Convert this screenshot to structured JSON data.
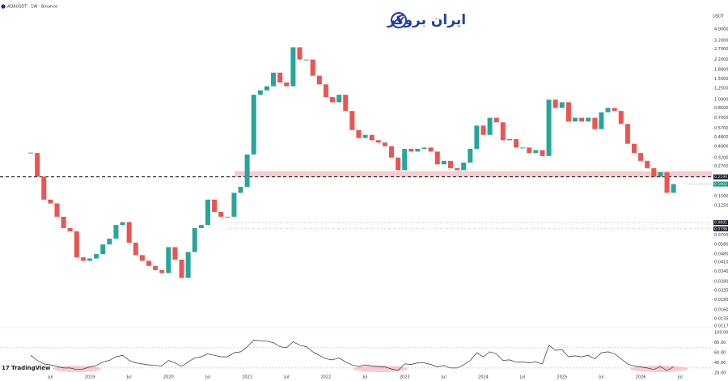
{
  "chart_data": [
    {
      "type": "candlestick",
      "title": "ADAUSDT · 1W · Binance",
      "brand": "ایران بروکر",
      "watermark": "TradingView",
      "currency": "USDT",
      "log_scale": true,
      "x": [
        "2018-04",
        "2018-05",
        "2018-06",
        "2018-07",
        "2018-08",
        "2018-09",
        "2018-10",
        "2018-11",
        "2018-12",
        "2019-01",
        "2019-02",
        "2019-03",
        "2019-04",
        "2019-05",
        "2019-06",
        "2019-07",
        "2019-08",
        "2019-09",
        "2019-10",
        "2019-11",
        "2019-12",
        "2020-01",
        "2020-02",
        "2020-03",
        "2020-04",
        "2020-05",
        "2020-06",
        "2020-07",
        "2020-08",
        "2020-09",
        "2020-10",
        "2020-11",
        "2020-12",
        "2021-01",
        "2021-02",
        "2021-03",
        "2021-04",
        "2021-05",
        "2021-06",
        "2021-07",
        "2021-08",
        "2021-09",
        "2021-10",
        "2021-11",
        "2021-12",
        "2022-01",
        "2022-02",
        "2022-03",
        "2022-04",
        "2022-05",
        "2022-06",
        "2022-07",
        "2022-08",
        "2022-09",
        "2022-10",
        "2022-11",
        "2022-12",
        "2023-01",
        "2023-02",
        "2023-03",
        "2023-04",
        "2023-05",
        "2023-06",
        "2023-07",
        "2023-08",
        "2023-09",
        "2023-10",
        "2023-11",
        "2023-12",
        "2024-01",
        "2024-02",
        "2024-03",
        "2024-04",
        "2024-05",
        "2024-06",
        "2024-07",
        "2024-08",
        "2024-09",
        "2024-10",
        "2024-11",
        "2024-12",
        "2025-01",
        "2025-02",
        "2025-03",
        "2025-04",
        "2025-05",
        "2025-06",
        "2025-07",
        "2025-08",
        "2025-09",
        "2025-10",
        "2025-11",
        "2025-12",
        "2026-01",
        "2026-02",
        "2026-03",
        "2026-04",
        "2026-05",
        "2026-06"
      ],
      "series": [
        {
          "name": "ADAUSDT",
          "up_color": "#26a69a",
          "down_color": "#ef5350",
          "values": [
            0.35,
            0.22,
            0.14,
            0.13,
            0.1,
            0.08,
            0.075,
            0.045,
            0.042,
            0.044,
            0.048,
            0.058,
            0.065,
            0.085,
            0.09,
            0.06,
            0.047,
            0.042,
            0.038,
            0.035,
            0.033,
            0.055,
            0.043,
            0.03,
            0.05,
            0.08,
            0.085,
            0.14,
            0.11,
            0.1,
            0.1,
            0.16,
            0.18,
            0.34,
            1.1,
            1.2,
            1.3,
            1.7,
            1.4,
            1.3,
            2.8,
            2.2,
            2.2,
            1.6,
            1.35,
            1.05,
            0.95,
            1.1,
            0.8,
            0.55,
            0.47,
            0.5,
            0.45,
            0.43,
            0.4,
            0.32,
            0.25,
            0.38,
            0.36,
            0.38,
            0.39,
            0.36,
            0.28,
            0.3,
            0.26,
            0.25,
            0.29,
            0.38,
            0.6,
            0.5,
            0.7,
            0.64,
            0.45,
            0.46,
            0.39,
            0.39,
            0.35,
            0.37,
            0.33,
            1.0,
            0.85,
            0.95,
            0.65,
            0.7,
            0.65,
            0.7,
            0.56,
            0.78,
            0.85,
            0.8,
            0.62,
            0.42,
            0.35,
            0.3,
            0.26,
            0.22,
            0.24,
            0.16,
            0.19
          ]
        }
      ],
      "ylim": [
        0.0113,
        5.16
      ],
      "yticks": [
        {
          "value": 4,
          "label": "4.0000"
        },
        {
          "value": 3.2,
          "label": "3.2000"
        },
        {
          "value": 2.7,
          "label": "2.7000"
        },
        {
          "value": 2.2,
          "label": "2.2000"
        },
        {
          "value": 1.8,
          "label": "1.8000"
        },
        {
          "value": 1.5,
          "label": "1.5000"
        },
        {
          "value": 1.25,
          "label": "1.2500"
        },
        {
          "value": 1,
          "label": "1.0000"
        },
        {
          "value": 0.85,
          "label": "0.8500"
        },
        {
          "value": 0.7,
          "label": "0.7000"
        },
        {
          "value": 0.57,
          "label": "0.5700"
        },
        {
          "value": 0.48,
          "label": "0.4800"
        },
        {
          "value": 0.4,
          "label": "0.4000"
        },
        {
          "value": 0.32,
          "label": "0.3200"
        },
        {
          "value": 0.27,
          "label": "0.2700"
        },
        {
          "value": 0.15,
          "label": "0.1500"
        },
        {
          "value": 0.125,
          "label": "0.1250"
        },
        {
          "value": 0.07,
          "label": "0.0700"
        },
        {
          "value": 0.058,
          "label": "0.0580"
        },
        {
          "value": 0.048,
          "label": "0.0480"
        },
        {
          "value": 0.041,
          "label": "0.0410"
        },
        {
          "value": 0.034,
          "label": "0.0340"
        },
        {
          "value": 0.028,
          "label": "0.0280"
        },
        {
          "value": 0.0235,
          "label": "0.0235"
        },
        {
          "value": 0.0195,
          "label": "0.0195"
        },
        {
          "value": 0.016,
          "label": "0.0160"
        },
        {
          "value": 0.0135,
          "label": "0.0135"
        },
        {
          "value": 0.0117,
          "label": "0.0117"
        }
      ],
      "xticks": [
        {
          "value": "2018-07",
          "label": "Jul"
        },
        {
          "value": "2019-01",
          "label": "2019"
        },
        {
          "value": "2019-07",
          "label": "Jul"
        },
        {
          "value": "2020-01",
          "label": "2020"
        },
        {
          "value": "2020-07",
          "label": "Jul"
        },
        {
          "value": "2021-01",
          "label": "2021"
        },
        {
          "value": "2021-07",
          "label": "Jul"
        },
        {
          "value": "2022-01",
          "label": "2022"
        },
        {
          "value": "2022-07",
          "label": "Jul"
        },
        {
          "value": "2023-01",
          "label": "2023"
        },
        {
          "value": "2023-07",
          "label": "Jul"
        },
        {
          "value": "2024-01",
          "label": "2024"
        },
        {
          "value": "2024-07",
          "label": "Jul"
        },
        {
          "value": "2025-01",
          "label": "2025"
        },
        {
          "value": "2025-07",
          "label": "Jul"
        },
        {
          "value": "2026-01",
          "label": "2026"
        },
        {
          "value": "2026-07",
          "label": "Jul"
        }
      ],
      "levels": [
        {
          "value": 0.219,
          "label": "0.2190",
          "style": "dashed",
          "color": "#000000"
        },
        {
          "value": 0.0891,
          "label": "0.0891",
          "style": "dotted",
          "color": "#999999"
        },
        {
          "value": 0.0788,
          "label": "0.0788",
          "style": "dotted",
          "color": "#999999"
        }
      ],
      "zone": {
        "from": 0.219,
        "to": 0.245,
        "color": "#f8bfc4"
      },
      "last_price": {
        "value": 0.1902,
        "label": "0.1902",
        "color": "#089981"
      }
    },
    {
      "type": "line",
      "series": [
        {
          "name": "RSI",
          "color": "#333333",
          "values": [
            55,
            45,
            38,
            36,
            33,
            30,
            30,
            27,
            28,
            32,
            35,
            42,
            45,
            52,
            55,
            45,
            40,
            38,
            36,
            35,
            34,
            45,
            40,
            33,
            42,
            50,
            52,
            58,
            55,
            52,
            52,
            60,
            62,
            72,
            85,
            84,
            83,
            80,
            72,
            70,
            82,
            75,
            72,
            62,
            55,
            48,
            46,
            50,
            42,
            36,
            33,
            36,
            34,
            33,
            32,
            28,
            25,
            38,
            37,
            40,
            40,
            37,
            32,
            35,
            30,
            30,
            36,
            45,
            60,
            52,
            62,
            58,
            45,
            46,
            42,
            42,
            40,
            42,
            38,
            75,
            65,
            66,
            52,
            54,
            52,
            55,
            48,
            60,
            62,
            58,
            48,
            38,
            34,
            32,
            30,
            27,
            33,
            25,
            32
          ]
        }
      ],
      "ylim": [
        17,
        105
      ],
      "yticks": [
        {
          "value": 100,
          "label": "100.00"
        },
        {
          "value": 80,
          "label": "80.00"
        },
        {
          "value": 60,
          "label": "60.00"
        },
        {
          "value": 40,
          "label": "40.00"
        },
        {
          "value": 20,
          "label": "20.00"
        }
      ],
      "bands": [
        70,
        30
      ]
    }
  ]
}
